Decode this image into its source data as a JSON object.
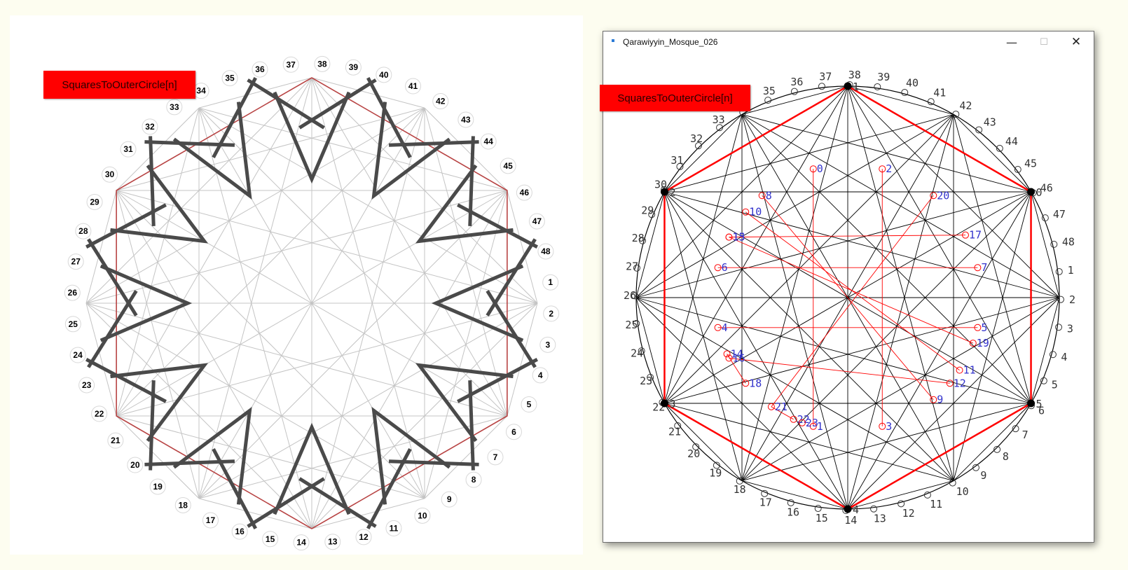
{
  "left_panel": {
    "button_label": "SquaresToOuterCircle[n]",
    "point_labels": [
      "1",
      "2",
      "3",
      "4",
      "5",
      "6",
      "7",
      "8",
      "9",
      "10",
      "11",
      "12",
      "13",
      "14",
      "15",
      "16",
      "17",
      "18",
      "19",
      "20",
      "21",
      "22",
      "23",
      "24",
      "25",
      "26",
      "27",
      "28",
      "29",
      "30",
      "31",
      "32",
      "33",
      "34",
      "35",
      "36",
      "37",
      "38",
      "39",
      "40",
      "41",
      "42",
      "43",
      "44",
      "45",
      "46",
      "47",
      "48"
    ]
  },
  "window": {
    "title": "Qarawiyyin_Mosque_026",
    "minimize_glyph": "—",
    "maximize_glyph": "☐",
    "close_glyph": "✕",
    "button_label": "SquaresToOuterCircle[n]",
    "outer_labels": [
      "1",
      "2",
      "3",
      "4",
      "5",
      "6",
      "7",
      "8",
      "9",
      "10",
      "11",
      "12",
      "13",
      "14",
      "15",
      "16",
      "17",
      "18",
      "19",
      "20",
      "21",
      "22",
      "23",
      "24",
      "25",
      "26",
      "27",
      "28",
      "29",
      "30",
      "31",
      "32",
      "33",
      "34",
      "35",
      "36",
      "37",
      "38",
      "39",
      "40",
      "41",
      "42",
      "43",
      "44",
      "45",
      "46",
      "47",
      "48"
    ],
    "vertex_labels": [
      "0",
      "1",
      "2",
      "3",
      "4",
      "5"
    ],
    "inner_labels": [
      "0",
      "1",
      "2",
      "3",
      "4",
      "5",
      "6",
      "7",
      "8",
      "9",
      "10",
      "11",
      "12",
      "13",
      "14",
      "15",
      "16",
      "17",
      "18",
      "19",
      "20",
      "21",
      "22",
      "23"
    ]
  },
  "colors": {
    "background": "#fdfdf0",
    "label_red": "#ff0000",
    "construction_black": "#000000",
    "inner_red": "#ff0000",
    "inner_label_blue": "#3333cc",
    "outer_label_gray": "#333333",
    "left_guides": "#c4c4c4",
    "left_star": "#4a4a4a",
    "left_hexagon": "#b84444"
  }
}
